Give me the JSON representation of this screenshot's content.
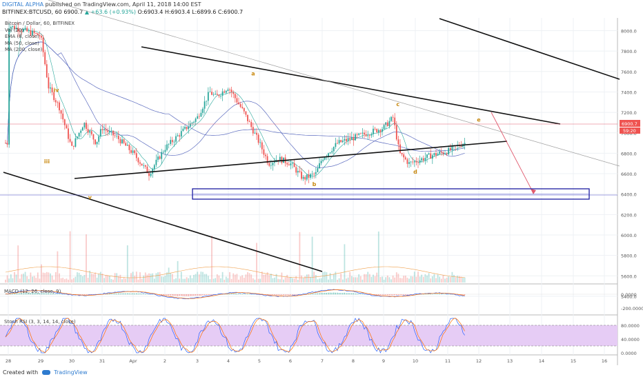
{
  "header": {
    "author": "DIGITAL ALPHA",
    "published": "published on TradingView.com, April 11, 2018 14:00 EST",
    "symbol": "BITFINEX:BTCUSD, 60",
    "last": "6900.7",
    "change": "▲ +63.6 (+0.93%)",
    "ohlc": "O:6903.4 H:6903.4 L:6899.6 C:6900.7"
  },
  "legend": {
    "series": "Bitcoin / Dollar, 60, BITFINEX",
    "vol": "Vol (20)",
    "ema": "EMA (8, close)",
    "ma50": "MA (50, close)",
    "ma200": "MA (200, close)"
  },
  "panels": {
    "macd_label": "MACD (12, 26, close, 9)",
    "stoch_label": "Stoch RSI (3, 3, 14, 14, close)"
  },
  "footer": {
    "created_with": "Created with",
    "brand": "TradingView"
  },
  "colors": {
    "up": "#26a69a",
    "down": "#ef5350",
    "ema": "#26a69a",
    "ma50": "#5b6bbf",
    "ma200": "#5b6bbf",
    "wave": "#c98a12",
    "box": "#1a1aa0",
    "target": "#e05a6e",
    "stoch_bg": "#e6ccf5"
  },
  "chart_data": [
    {
      "type": "candlestick",
      "title": "Bitcoin / Dollar, 60, BITFINEX",
      "ylim": [
        5300,
        8100
      ],
      "yticks": [
        "8000.0",
        "7800.0",
        "7600.0",
        "7400.0",
        "7200.0",
        "7000.0",
        "6800.0",
        "6600.0",
        "6400.0",
        "6200.0",
        "6000.0",
        "5800.0",
        "5600.0",
        "5400.0"
      ],
      "xticks": [
        "28",
        "29",
        "30",
        "31",
        "Apr",
        "2",
        "3",
        "4",
        "5",
        "6",
        "7",
        "8",
        "9",
        "10",
        "11",
        "12",
        "13",
        "14",
        "15",
        "16"
      ],
      "last_price_label": "6900.7",
      "countdown_label": "59:20",
      "price_path": [
        [
          "28",
          8050
        ],
        [
          "29",
          7950
        ],
        [
          "29.25",
          7450
        ],
        [
          "29.6",
          7250
        ],
        [
          "30",
          6850
        ],
        [
          "30.4",
          7100
        ],
        [
          "30.8",
          6900
        ],
        [
          "31",
          7050
        ],
        [
          "31.5",
          6950
        ],
        [
          "Apr",
          6800
        ],
        [
          "Apr.5",
          6600
        ],
        [
          "2",
          6850
        ],
        [
          "2.5",
          7000
        ],
        [
          "3",
          7150
        ],
        [
          "3.4",
          7400
        ],
        [
          "3.6",
          7350
        ],
        [
          "4",
          7450
        ],
        [
          "4.5",
          7200
        ],
        [
          "5",
          6900
        ],
        [
          "5.3",
          6700
        ],
        [
          "5.6",
          6750
        ],
        [
          "6",
          6700
        ],
        [
          "6.4",
          6550
        ],
        [
          "6.8",
          6600
        ],
        [
          "7",
          6750
        ],
        [
          "7.5",
          6900
        ],
        [
          "8",
          6950
        ],
        [
          "8.5",
          7000
        ],
        [
          "9",
          7050
        ],
        [
          "9.3",
          7150
        ],
        [
          "9.5",
          6800
        ],
        [
          "9.8",
          6700
        ],
        [
          "10",
          6720
        ],
        [
          "10.5",
          6780
        ],
        [
          "11",
          6820
        ],
        [
          "11.5",
          6900
        ],
        [
          "11.6",
          6900.7
        ]
      ],
      "annotations": [
        {
          "text": "iv",
          "x": "29.5",
          "y": 7400
        },
        {
          "text": "iii",
          "x": "29.2",
          "y": 6700
        },
        {
          "text": "v",
          "x": "30.6",
          "y": 6350
        },
        {
          "text": "a",
          "x": "4.8",
          "y": 7560
        },
        {
          "text": "b",
          "x": "6.75",
          "y": 6480
        },
        {
          "text": "c",
          "x": "9.45",
          "y": 7260
        },
        {
          "text": "d",
          "x": "10.0",
          "y": 6600
        },
        {
          "text": "e",
          "x": "12.0",
          "y": 7110
        }
      ],
      "target_zone": [
        6150,
        6250
      ]
    },
    {
      "type": "bar",
      "title": "Vol (20)"
    },
    {
      "type": "line",
      "title": "MACD (12, 26, close, 9)",
      "ylim": [
        -350,
        120
      ],
      "yticks": [
        "0.0000",
        "-200.0000"
      ]
    },
    {
      "type": "line",
      "title": "Stoch RSI (3, 3, 14, 14, close)",
      "ylim": [
        -5,
        110
      ],
      "yticks": [
        "80.0000",
        "40.0000",
        "0.0000"
      ],
      "bands": [
        20,
        80
      ]
    }
  ]
}
